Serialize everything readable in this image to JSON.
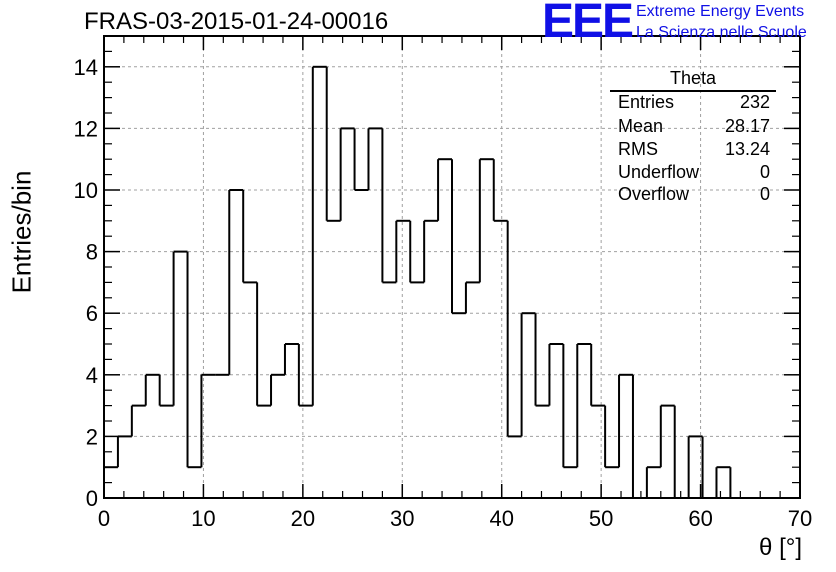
{
  "title": "FRAS-03-2015-01-24-00016",
  "logo": {
    "mark": "EEE",
    "line1": "Extreme Energy Events",
    "line2": "La Scienza nelle Scuole",
    "color": "#1010e6"
  },
  "stats": {
    "title": "Theta",
    "rows": [
      {
        "label": "Entries",
        "value": "232"
      },
      {
        "label": "Mean",
        "value": "28.17"
      },
      {
        "label": "RMS",
        "value": "13.24"
      },
      {
        "label": "Underflow",
        "value": "0"
      },
      {
        "label": "Overflow",
        "value": "0"
      }
    ]
  },
  "chart_data": {
    "type": "histogram",
    "title": "FRAS-03-2015-01-24-00016",
    "xlabel": "θ [°]",
    "ylabel": "Entries/bin",
    "xlim": [
      0,
      70
    ],
    "ylim": [
      0,
      15
    ],
    "xticks": [
      0,
      10,
      20,
      30,
      40,
      50,
      60,
      70
    ],
    "yticks": [
      0,
      2,
      4,
      6,
      8,
      10,
      12,
      14
    ],
    "bin_width": 1.4,
    "values": [
      1,
      2,
      3,
      4,
      3,
      8,
      1,
      4,
      4,
      10,
      7,
      3,
      4,
      5,
      3,
      14,
      9,
      12,
      10,
      12,
      7,
      9,
      7,
      9,
      11,
      6,
      7,
      11,
      9,
      2,
      6,
      3,
      5,
      1,
      5,
      3,
      1,
      4,
      0,
      1,
      3,
      0,
      2,
      0,
      1,
      0,
      0,
      0,
      0,
      0
    ],
    "grid": true,
    "line_color": "#000000",
    "grid_color": "#a0a0a0"
  }
}
